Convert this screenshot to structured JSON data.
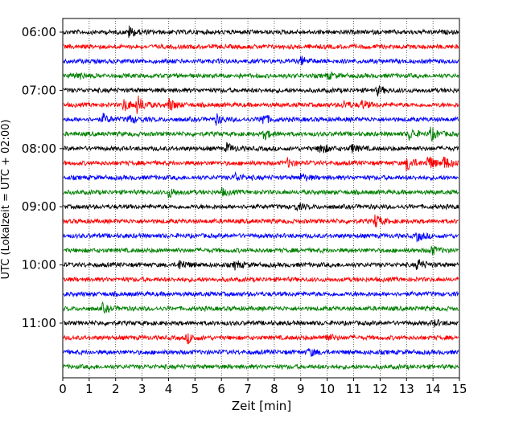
{
  "chart_data": {
    "type": "line",
    "title": "",
    "xlabel": "Zeit  [min]",
    "ylabel": "UTC (Lokalzeit = UTC + 02:00)",
    "xlim": [
      0,
      15
    ],
    "x_ticks": [
      0,
      1,
      2,
      3,
      4,
      5,
      6,
      7,
      8,
      9,
      10,
      11,
      12,
      13,
      14,
      15
    ],
    "x_tick_labels": [
      "0",
      "1",
      "2",
      "3",
      "4",
      "5",
      "6",
      "7",
      "8",
      "9",
      "10",
      "11",
      "12",
      "13",
      "14",
      "15"
    ],
    "x_grid": "dotted-vertical",
    "y_tick_labels": [
      "06:00",
      "07:00",
      "08:00",
      "09:00",
      "10:00",
      "11:00"
    ],
    "trace_interval_minutes": 15,
    "first_trace_start": "06:00",
    "color_cycle": [
      "#000000",
      "#ff0000",
      "#0000ff",
      "#008000"
    ],
    "traces": [
      {
        "start": "06:00",
        "color": "#000000",
        "events": [
          {
            "t": 2.5,
            "amp": 7
          }
        ]
      },
      {
        "start": "06:15",
        "color": "#ff0000",
        "events": []
      },
      {
        "start": "06:30",
        "color": "#0000ff",
        "events": [
          {
            "t": 9.0,
            "amp": 5
          }
        ]
      },
      {
        "start": "06:45",
        "color": "#008000",
        "events": [
          {
            "t": 0.5,
            "amp": 5
          },
          {
            "t": 10.0,
            "amp": 4
          }
        ]
      },
      {
        "start": "07:00",
        "color": "#000000",
        "events": [
          {
            "t": 11.9,
            "amp": 5
          }
        ]
      },
      {
        "start": "07:15",
        "color": "#ff0000",
        "events": [
          {
            "t": 2.3,
            "amp": 8
          },
          {
            "t": 2.8,
            "amp": 11
          },
          {
            "t": 4.0,
            "amp": 8
          },
          {
            "t": 10.6,
            "amp": 5
          },
          {
            "t": 11.3,
            "amp": 5
          }
        ]
      },
      {
        "start": "07:30",
        "color": "#0000ff",
        "events": [
          {
            "t": 1.5,
            "amp": 6
          },
          {
            "t": 2.5,
            "amp": 5
          },
          {
            "t": 5.8,
            "amp": 6
          },
          {
            "t": 7.5,
            "amp": 8
          }
        ]
      },
      {
        "start": "07:45",
        "color": "#008000",
        "events": [
          {
            "t": 7.6,
            "amp": 6
          },
          {
            "t": 13.1,
            "amp": 7
          },
          {
            "t": 13.9,
            "amp": 8
          }
        ]
      },
      {
        "start": "08:00",
        "color": "#000000",
        "events": [
          {
            "t": 6.2,
            "amp": 6
          },
          {
            "t": 9.7,
            "amp": 8
          },
          {
            "t": 10.9,
            "amp": 5
          }
        ]
      },
      {
        "start": "08:15",
        "color": "#ff0000",
        "events": [
          {
            "t": 8.5,
            "amp": 5
          },
          {
            "t": 13.0,
            "amp": 10
          },
          {
            "t": 13.8,
            "amp": 10
          },
          {
            "t": 14.4,
            "amp": 8
          }
        ]
      },
      {
        "start": "08:30",
        "color": "#0000ff",
        "events": [
          {
            "t": 6.5,
            "amp": 5
          },
          {
            "t": 9.0,
            "amp": 5
          }
        ]
      },
      {
        "start": "08:45",
        "color": "#008000",
        "events": [
          {
            "t": 4.0,
            "amp": 6
          },
          {
            "t": 6.0,
            "amp": 4
          }
        ]
      },
      {
        "start": "09:00",
        "color": "#000000",
        "events": [
          {
            "t": 8.8,
            "amp": 4
          }
        ]
      },
      {
        "start": "09:15",
        "color": "#ff0000",
        "events": [
          {
            "t": 11.8,
            "amp": 8
          }
        ]
      },
      {
        "start": "09:30",
        "color": "#0000ff",
        "events": [
          {
            "t": 13.4,
            "amp": 6
          }
        ]
      },
      {
        "start": "09:45",
        "color": "#008000",
        "events": [
          {
            "t": 13.9,
            "amp": 6
          }
        ]
      },
      {
        "start": "10:00",
        "color": "#000000",
        "events": [
          {
            "t": 4.4,
            "amp": 6
          },
          {
            "t": 6.5,
            "amp": 5
          },
          {
            "t": 13.4,
            "amp": 8
          }
        ]
      },
      {
        "start": "10:15",
        "color": "#ff0000",
        "events": []
      },
      {
        "start": "10:30",
        "color": "#0000ff",
        "events": []
      },
      {
        "start": "10:45",
        "color": "#008000",
        "events": [
          {
            "t": 1.5,
            "amp": 5
          }
        ]
      },
      {
        "start": "11:00",
        "color": "#000000",
        "events": [
          {
            "t": 14.0,
            "amp": 4
          }
        ]
      },
      {
        "start": "11:15",
        "color": "#ff0000",
        "events": [
          {
            "t": 4.7,
            "amp": 6
          },
          {
            "t": 9.9,
            "amp": 6
          }
        ]
      },
      {
        "start": "11:30",
        "color": "#0000ff",
        "events": [
          {
            "t": 9.3,
            "amp": 5
          }
        ]
      },
      {
        "start": "11:45",
        "color": "#008000",
        "events": []
      }
    ]
  }
}
